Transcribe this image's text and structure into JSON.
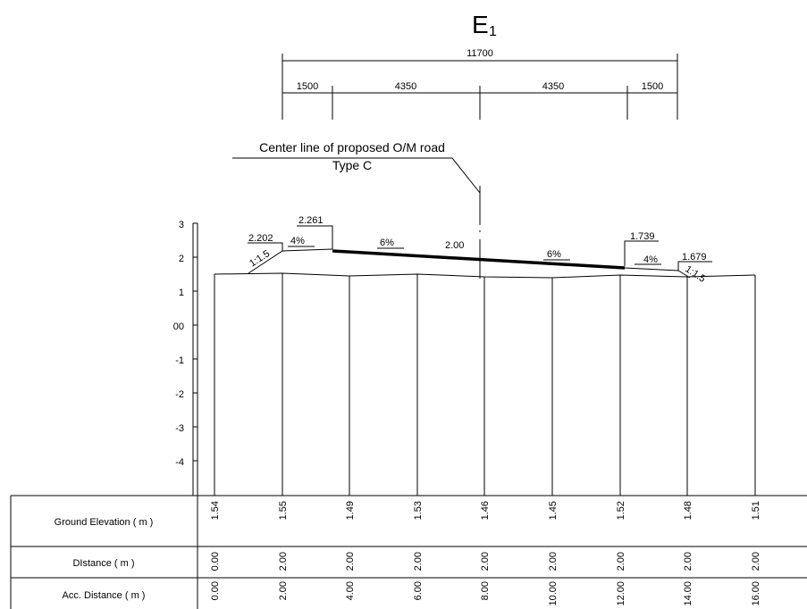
{
  "section": {
    "title_main": "E",
    "title_sub": "1",
    "total_width": "11700",
    "widths": [
      "1500",
      "4350",
      "4350",
      "1500"
    ],
    "center_line_label": "Center line of proposed O/M road",
    "road_type": "Type C"
  },
  "scale_labels": [
    "3",
    "2",
    "1",
    "00",
    "-1",
    "-2",
    "-3",
    "-4"
  ],
  "annotations": {
    "left_toe_elev": "2.202",
    "left_edge_elev": "2.261",
    "right_edge_elev": "1.739",
    "right_toe_elev": "1.679",
    "center_elev": "2.00",
    "left_shoulder_slope": "4%",
    "right_shoulder_slope": "4%",
    "left_crossfall": "6%",
    "right_crossfall": "6%",
    "left_side_slope": "1:1.5",
    "right_side_slope": "1:1.5"
  },
  "table": {
    "rows": [
      {
        "label": "Ground Elevation ( m )",
        "values": [
          "1.54",
          "1.55",
          "1.49",
          "1.53",
          "1.46",
          "1.45",
          "1.52",
          "1.48",
          "1.51"
        ]
      },
      {
        "label": "DIstance ( m )",
        "values": [
          "0.00",
          "2.00",
          "2.00",
          "2.00",
          "2.00",
          "2.00",
          "2.00",
          "2.00",
          "2.00"
        ]
      },
      {
        "label": "Acc. Distance ( m )",
        "values": [
          "0.00",
          "2.00",
          "4.00",
          "6.00",
          "8.00",
          "10.00",
          "12.00",
          "14.00",
          "16.00"
        ]
      }
    ]
  }
}
